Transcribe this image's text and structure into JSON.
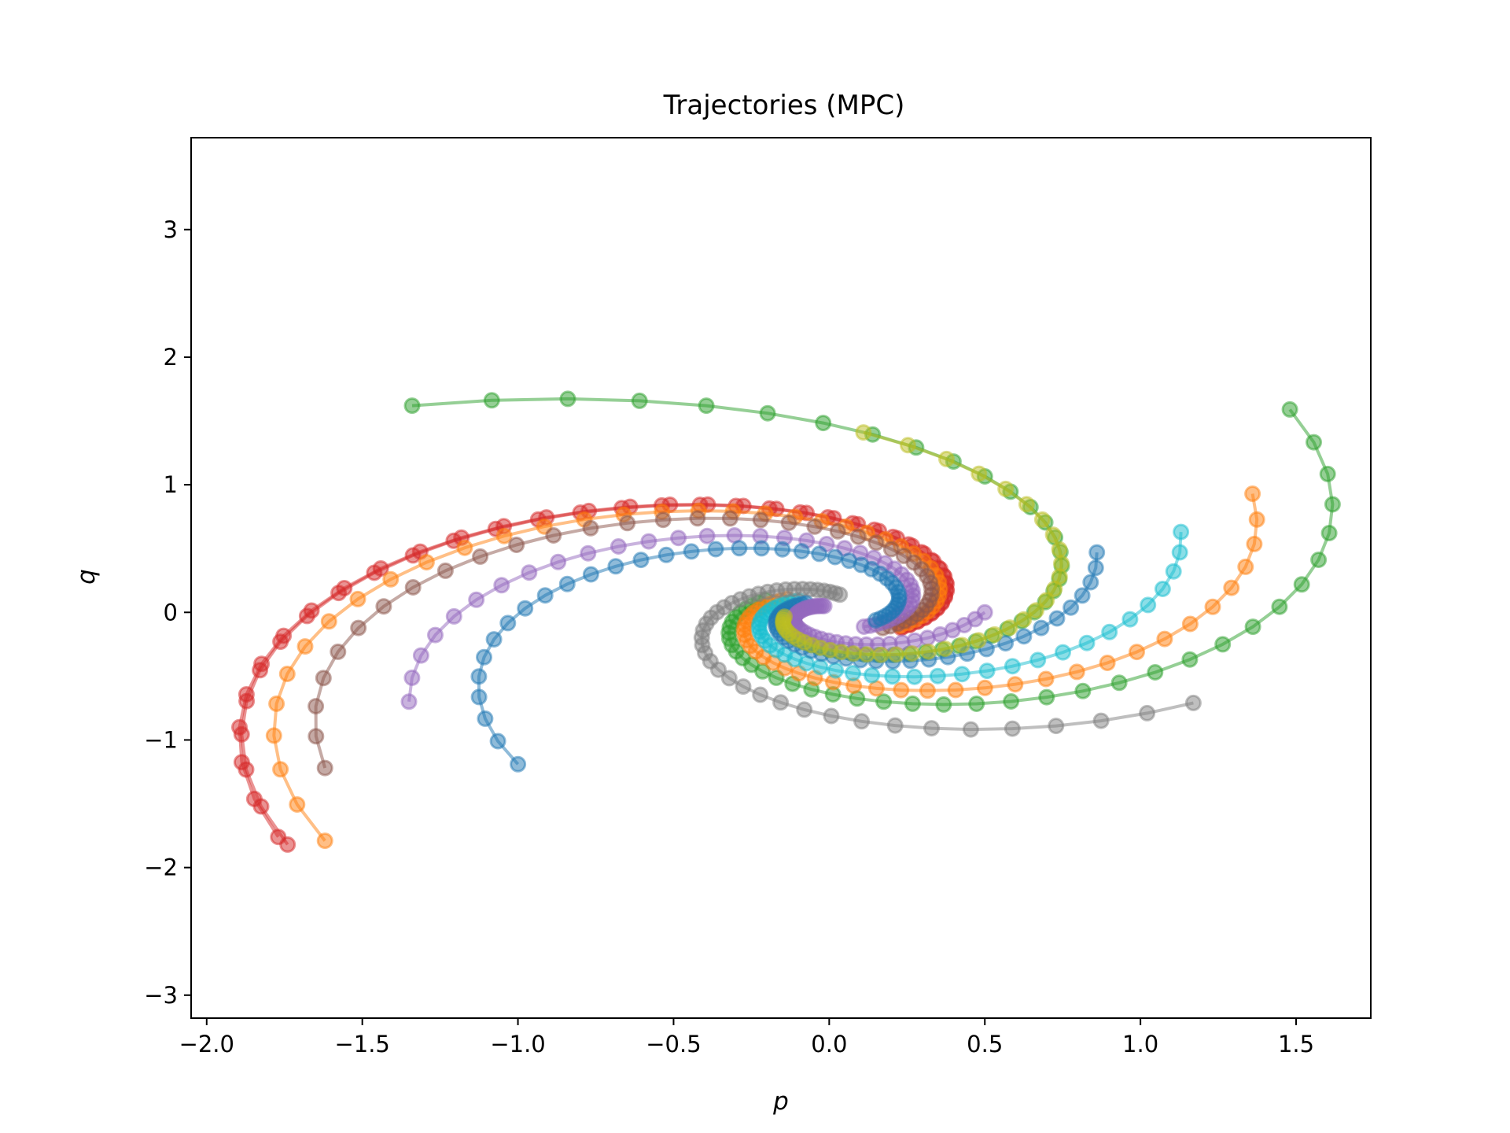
{
  "chart_data": {
    "type": "scatter",
    "title": "Trajectories (MPC)",
    "xlabel": "p",
    "ylabel": "q",
    "xlim": [
      -2.05,
      1.74
    ],
    "ylim": [
      -3.18,
      3.72
    ],
    "xticks": [
      -2.0,
      -1.5,
      -1.0,
      -0.5,
      0.0,
      0.5,
      1.0,
      1.5
    ],
    "yticks": [
      -3,
      -2,
      -1,
      0,
      1,
      2,
      3
    ],
    "xtick_labels": [
      "−2.0",
      "−1.5",
      "−1.0",
      "−0.5",
      "0.0",
      "0.5",
      "1.0",
      "1.5"
    ],
    "ytick_labels": [
      "−3",
      "−2",
      "−1",
      "0",
      "1",
      "2",
      "3"
    ],
    "grid": false,
    "legend": "none",
    "series": [
      {
        "color": "#d62728",
        "start": [
          -1.74,
          -1.82
        ]
      },
      {
        "color": "#d62728",
        "start": [
          -1.77,
          -1.76
        ]
      },
      {
        "color": "#ff7f0e",
        "start": [
          -1.62,
          -1.79
        ]
      },
      {
        "color": "#8c564b",
        "start": [
          -1.62,
          -1.22
        ]
      },
      {
        "color": "#9467bd",
        "start": [
          -1.35,
          -0.7
        ]
      },
      {
        "color": "#1f77b4",
        "start": [
          -1.0,
          -1.19
        ]
      },
      {
        "color": "#2ca02c",
        "start": [
          -1.34,
          1.62
        ]
      },
      {
        "color": "#2ca02c",
        "start": [
          1.48,
          1.59
        ]
      },
      {
        "color": "#ff7f0e",
        "start": [
          1.36,
          0.93
        ]
      },
      {
        "color": "#17becf",
        "start": [
          1.13,
          0.63
        ]
      },
      {
        "color": "#7f7f7f",
        "start": [
          1.17,
          -0.71
        ]
      },
      {
        "color": "#1f77b4",
        "start": [
          0.86,
          0.47
        ]
      },
      {
        "color": "#9467bd",
        "start": [
          0.5,
          0.0
        ]
      },
      {
        "color": "#bcbd22",
        "start": [
          0.11,
          1.41
        ]
      }
    ]
  }
}
